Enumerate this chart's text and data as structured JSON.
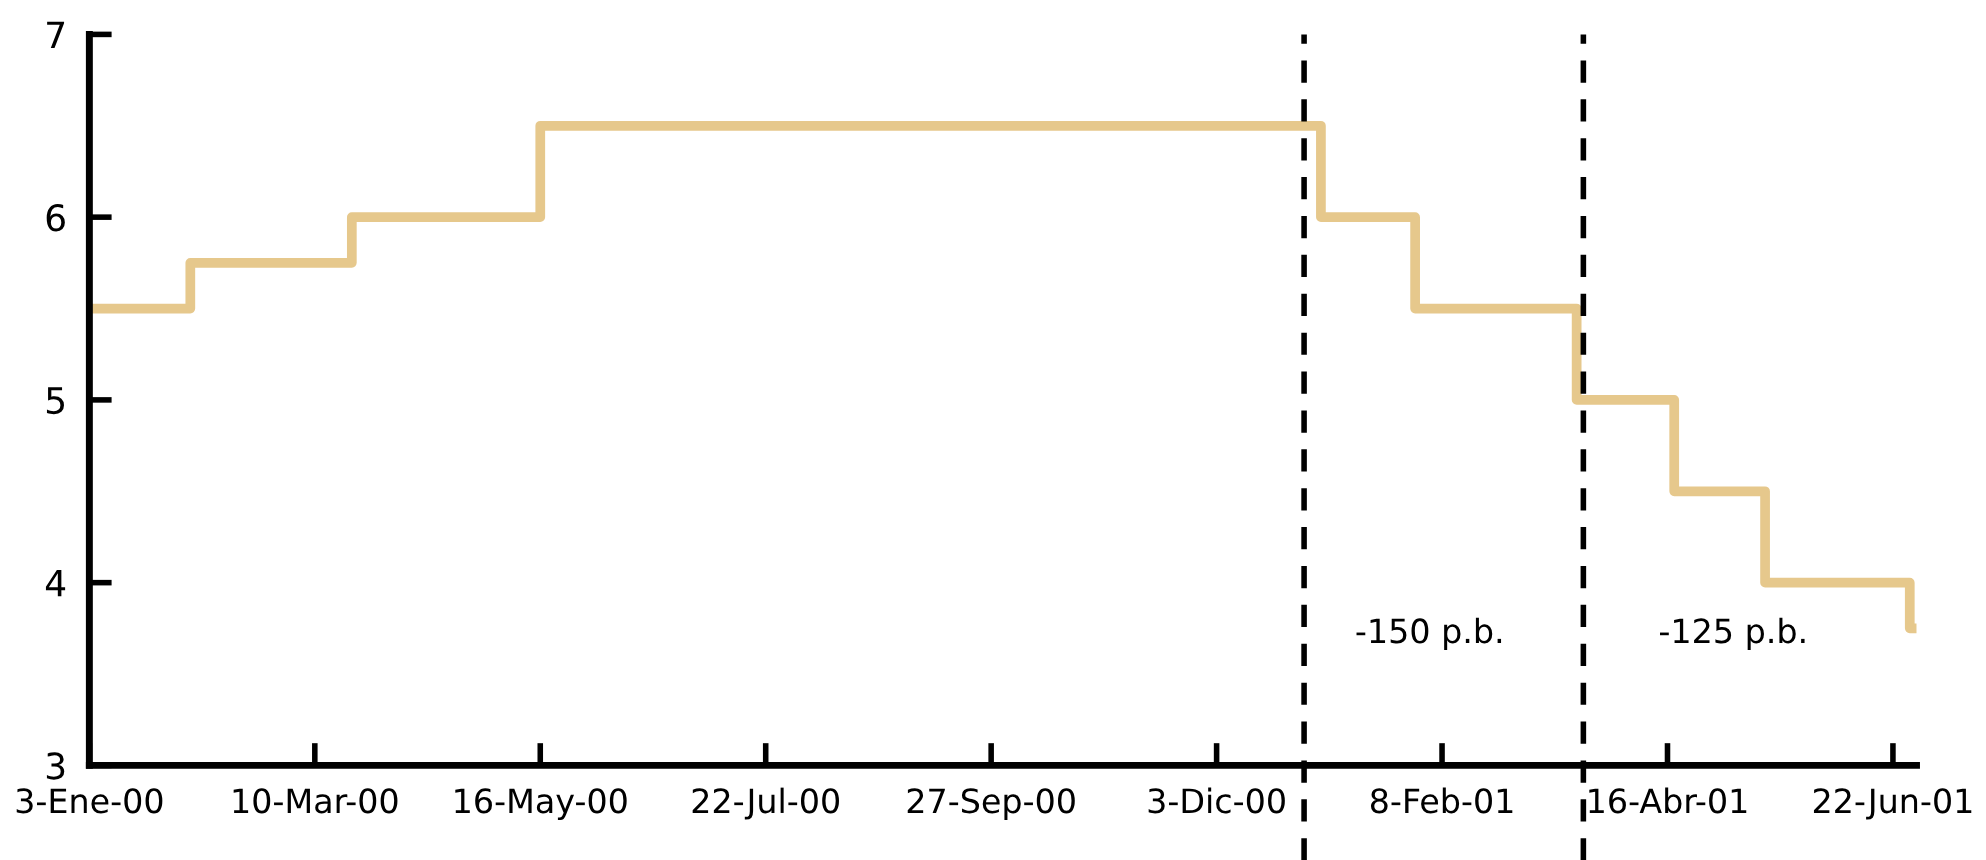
{
  "chart_data": {
    "type": "step",
    "x": [
      "2000-01-03",
      "2000-02-02",
      "2000-03-21",
      "2000-05-16",
      "2001-01-03",
      "2001-01-31",
      "2001-03-20",
      "2001-04-18",
      "2001-05-15",
      "2001-06-27",
      "2001-06-29"
    ],
    "series": [
      {
        "color": "#e6c88c",
        "values": [
          5.5,
          5.75,
          6.0,
          6.5,
          6.0,
          5.5,
          5.0,
          4.5,
          4.0,
          3.75,
          3.75
        ]
      }
    ],
    "xlim": [
      "2000-01-03",
      "2001-06-29"
    ],
    "xticks": [
      {
        "value": "2000-01-03",
        "label": "3-Ene-00"
      },
      {
        "value": "2000-03-10",
        "label": "10-Mar-00"
      },
      {
        "value": "2000-05-16",
        "label": "16-May-00"
      },
      {
        "value": "2000-07-22",
        "label": "22-Jul-00"
      },
      {
        "value": "2000-09-27",
        "label": "27-Sep-00"
      },
      {
        "value": "2000-12-03",
        "label": "3-Dic-00"
      },
      {
        "value": "2001-02-08",
        "label": "8-Feb-01"
      },
      {
        "value": "2001-04-16",
        "label": "16-Abr-01"
      },
      {
        "value": "2001-06-22",
        "label": "22-Jun-01"
      }
    ],
    "ylim": [
      3,
      7
    ],
    "yticks": [
      3,
      4,
      5,
      6,
      7
    ],
    "grid": false,
    "line_style": "solid",
    "marker": "none",
    "ref_lines": [
      {
        "axis": "x",
        "value": "2000-12-29",
        "color": "#000000",
        "line_style": "dashed"
      },
      {
        "axis": "x",
        "value": "2001-03-22",
        "color": "#000000",
        "line_style": "dashed"
      }
    ],
    "annotations": [
      "-150 p.b.",
      "-125 p.b."
    ]
  }
}
